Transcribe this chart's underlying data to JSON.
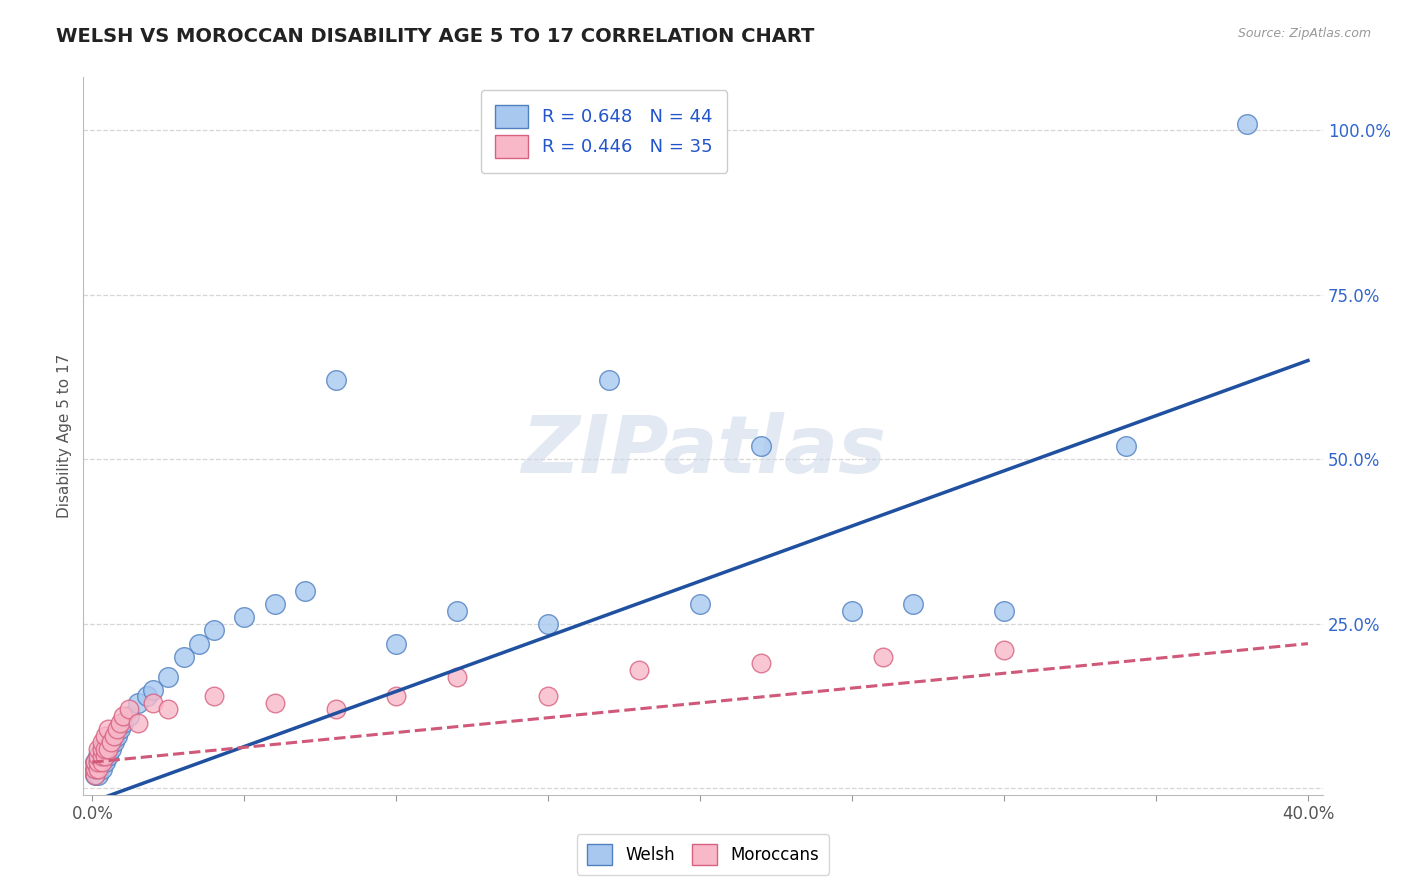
{
  "title": "WELSH VS MOROCCAN DISABILITY AGE 5 TO 17 CORRELATION CHART",
  "ylabel": "Disability Age 5 to 17",
  "source": "Source: ZipAtlas.com",
  "xlim": [
    -0.003,
    0.405
  ],
  "ylim": [
    -0.01,
    1.08
  ],
  "xtick_positions": [
    0.0,
    0.05,
    0.1,
    0.15,
    0.2,
    0.25,
    0.3,
    0.35,
    0.4
  ],
  "ytick_positions": [
    0.0,
    0.25,
    0.5,
    0.75,
    1.0
  ],
  "ytick_labels": [
    "",
    "25.0%",
    "50.0%",
    "75.0%",
    "100.0%"
  ],
  "welsh_color": "#A8C8F0",
  "welsh_edge_color": "#5080C0",
  "moroccan_color": "#F8B8C8",
  "moroccan_edge_color": "#D86080",
  "trend_welsh_color": "#2050A0",
  "trend_moroccan_color": "#D05878",
  "welsh_R": 0.648,
  "welsh_N": 44,
  "moroccan_R": 0.446,
  "moroccan_N": 35,
  "watermark": "ZIPatlas",
  "background_color": "#ffffff",
  "grid_color": "#cccccc",
  "welsh_x": [
    0.001,
    0.001,
    0.001,
    0.002,
    0.002,
    0.002,
    0.002,
    0.003,
    0.003,
    0.003,
    0.003,
    0.004,
    0.004,
    0.005,
    0.005,
    0.006,
    0.006,
    0.007,
    0.008,
    0.009,
    0.01,
    0.012,
    0.015,
    0.018,
    0.02,
    0.025,
    0.03,
    0.035,
    0.04,
    0.05,
    0.06,
    0.07,
    0.08,
    0.1,
    0.12,
    0.15,
    0.17,
    0.2,
    0.22,
    0.25,
    0.27,
    0.3,
    0.34,
    0.38
  ],
  "welsh_y": [
    0.02,
    0.03,
    0.04,
    0.02,
    0.03,
    0.04,
    0.05,
    0.03,
    0.04,
    0.05,
    0.06,
    0.04,
    0.05,
    0.05,
    0.06,
    0.06,
    0.07,
    0.07,
    0.08,
    0.09,
    0.1,
    0.11,
    0.13,
    0.14,
    0.15,
    0.17,
    0.2,
    0.22,
    0.24,
    0.26,
    0.28,
    0.3,
    0.62,
    0.22,
    0.27,
    0.25,
    0.62,
    0.28,
    0.52,
    0.27,
    0.28,
    0.27,
    0.52,
    1.01
  ],
  "moroccan_x": [
    0.001,
    0.001,
    0.001,
    0.002,
    0.002,
    0.002,
    0.002,
    0.003,
    0.003,
    0.003,
    0.003,
    0.004,
    0.004,
    0.004,
    0.005,
    0.005,
    0.006,
    0.007,
    0.008,
    0.009,
    0.01,
    0.012,
    0.015,
    0.02,
    0.025,
    0.04,
    0.06,
    0.08,
    0.1,
    0.12,
    0.15,
    0.18,
    0.22,
    0.26,
    0.3
  ],
  "moroccan_y": [
    0.02,
    0.03,
    0.04,
    0.03,
    0.04,
    0.05,
    0.06,
    0.04,
    0.05,
    0.06,
    0.07,
    0.05,
    0.06,
    0.08,
    0.06,
    0.09,
    0.07,
    0.08,
    0.09,
    0.1,
    0.11,
    0.12,
    0.1,
    0.13,
    0.12,
    0.14,
    0.13,
    0.12,
    0.14,
    0.17,
    0.14,
    0.18,
    0.19,
    0.2,
    0.21
  ],
  "welsh_trend_x0": 0.0,
  "welsh_trend_x1": 0.4,
  "welsh_trend_y0": -0.02,
  "welsh_trend_y1": 0.65,
  "moroccan_trend_x0": 0.0,
  "moroccan_trend_x1": 0.4,
  "moroccan_trend_y0": 0.04,
  "moroccan_trend_y1": 0.22
}
